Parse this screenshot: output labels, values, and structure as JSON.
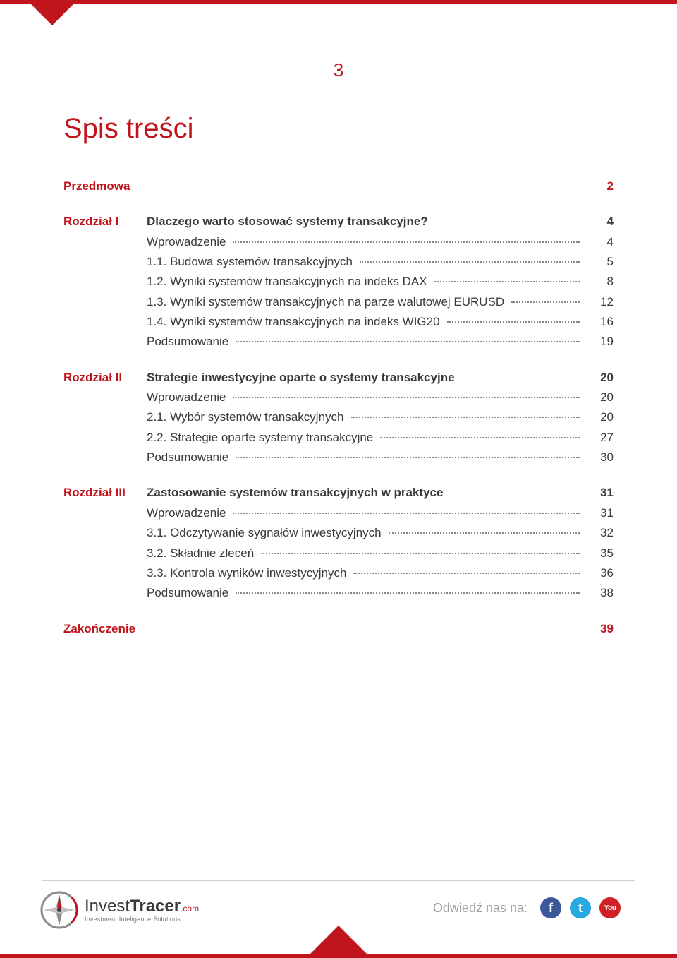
{
  "page_number": "3",
  "title": "Spis treści",
  "colors": {
    "accent": "#c0151c",
    "text": "#3a3a3a",
    "muted": "#9c9c9c",
    "divider": "#d0d0d0",
    "dots": "#888888",
    "background": "#ffffff",
    "fb": "#3b5998",
    "tw": "#29a9e1",
    "yt": "#cf2127"
  },
  "toc": [
    {
      "chapter": "",
      "label": "Przedmowa",
      "page": "2",
      "style": "red",
      "dots": false,
      "gap_after": true
    },
    {
      "chapter": "Rozdział I",
      "label": "Dlaczego warto stosować systemy transakcyjne?",
      "page": "4",
      "style": "bold",
      "dots": false
    },
    {
      "chapter": "",
      "label": "Wprowadzenie",
      "page": "4",
      "style": "plain",
      "dots": true
    },
    {
      "chapter": "",
      "label": "1.1. Budowa systemów transakcyjnych",
      "page": "5",
      "style": "plain",
      "dots": true
    },
    {
      "chapter": "",
      "label": "1.2. Wyniki systemów transakcyjnych na indeks DAX",
      "page": "8",
      "style": "plain",
      "dots": true
    },
    {
      "chapter": "",
      "label": "1.3. Wyniki systemów transakcyjnych na parze walutowej EURUSD",
      "page": "12",
      "style": "plain",
      "dots": true
    },
    {
      "chapter": "",
      "label": "1.4.  Wyniki systemów transakcyjnych na indeks WIG20",
      "page": "16",
      "style": "plain",
      "dots": true
    },
    {
      "chapter": "",
      "label": "Podsumowanie",
      "page": "19",
      "style": "plain",
      "dots": true,
      "gap_after": true
    },
    {
      "chapter": "Rozdział II",
      "label": "Strategie inwestycyjne oparte o systemy transakcyjne",
      "page": "20",
      "style": "bold",
      "dots": false
    },
    {
      "chapter": "",
      "label": "Wprowadzenie",
      "page": "20",
      "style": "plain",
      "dots": true
    },
    {
      "chapter": "",
      "label": "2.1. Wybór systemów transakcyjnych",
      "page": "20",
      "style": "plain",
      "dots": true
    },
    {
      "chapter": "",
      "label": "2.2. Strategie oparte systemy transakcyjne",
      "page": "27",
      "style": "plain",
      "dots": true
    },
    {
      "chapter": "",
      "label": "Podsumowanie",
      "page": "30",
      "style": "plain",
      "dots": true,
      "gap_after": true
    },
    {
      "chapter": "Rozdział III",
      "label": "Zastosowanie systemów transakcyjnych w praktyce",
      "page": "31",
      "style": "bold",
      "dots": false
    },
    {
      "chapter": "",
      "label": "Wprowadzenie",
      "page": "31",
      "style": "plain",
      "dots": true
    },
    {
      "chapter": "",
      "label": "3.1. Odczytywanie sygnałów inwestycyjnych",
      "page": "32",
      "style": "plain",
      "dots": true
    },
    {
      "chapter": "",
      "label": "3.2. Składnie zleceń",
      "page": "35",
      "style": "plain",
      "dots": true
    },
    {
      "chapter": "",
      "label": "3.3. Kontrola wyników inwestycyjnych ",
      "page": "36",
      "style": "plain",
      "dots": true
    },
    {
      "chapter": "",
      "label": "Podsumowanie",
      "page": "38",
      "style": "plain",
      "dots": true,
      "gap_after": true
    },
    {
      "chapter": "",
      "label": "Zakończenie",
      "page": "39",
      "style": "red",
      "dots": false
    }
  ],
  "footer": {
    "brand_a": "Invest",
    "brand_b": "Tracer",
    "brand_suffix": ".com",
    "tagline": "Investment Inteligence Solutions",
    "social_label": "Odwiedź nas na:",
    "fb": "f",
    "tw": "t",
    "yt": "You"
  }
}
